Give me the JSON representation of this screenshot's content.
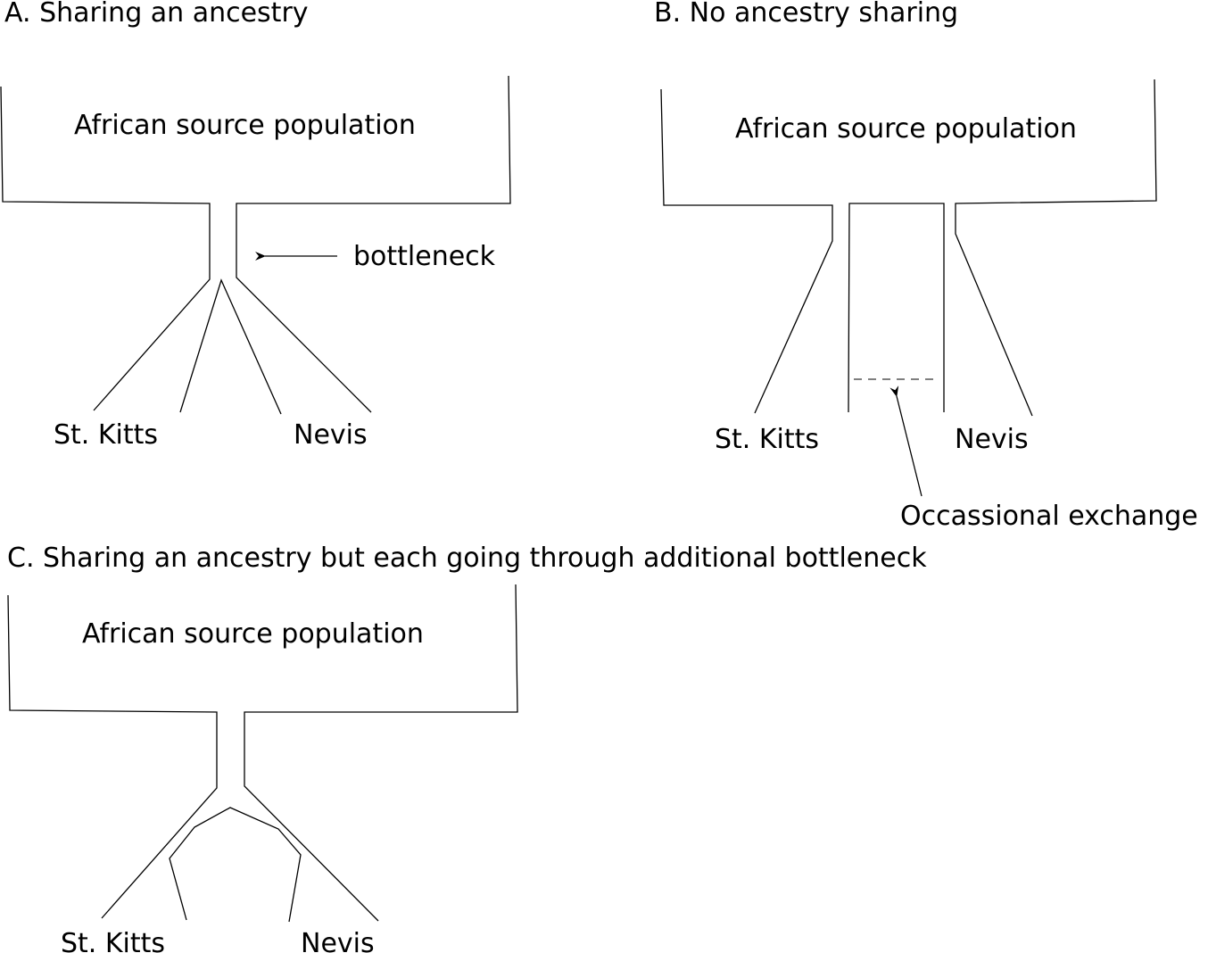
{
  "panel_a": {
    "title": "A. Sharing an ancestry",
    "source_label": "African source population",
    "bottleneck_label": "bottleneck",
    "left_label": "St. Kitts",
    "right_label": "Nevis"
  },
  "panel_b": {
    "title": "B. No ancestry sharing",
    "source_label": "African source population",
    "left_label": "St. Kitts",
    "right_label": "Nevis",
    "exchange_label": "Occassional exchange"
  },
  "panel_c": {
    "title": "C. Sharing an ancestry but each going through additional bottleneck",
    "source_label": "African source population",
    "left_label": "St. Kitts",
    "right_label": "Nevis"
  }
}
